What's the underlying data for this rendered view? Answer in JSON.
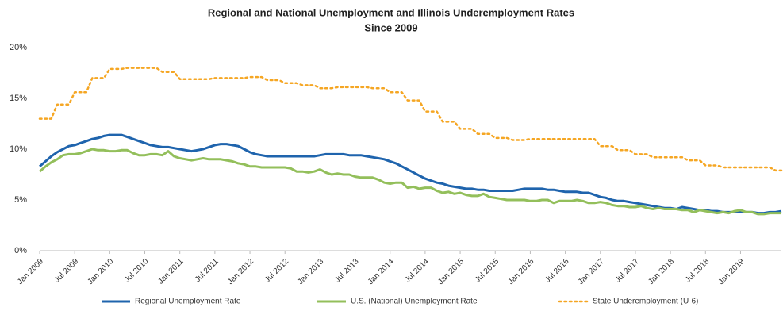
{
  "chart_data": {
    "type": "line",
    "title": "Regional and National Unemployment and Illinois Underemployment Rates",
    "subtitle": "Since 2009",
    "categories": [
      "Jan 2009",
      null,
      null,
      null,
      null,
      null,
      "Jul 2009",
      null,
      null,
      null,
      null,
      null,
      "Jan 2010",
      null,
      null,
      null,
      null,
      null,
      "Jul 2010",
      null,
      null,
      null,
      null,
      null,
      "Jan 2011",
      null,
      null,
      null,
      null,
      null,
      "Jul 2011",
      null,
      null,
      null,
      null,
      null,
      "Jan 2012",
      null,
      null,
      null,
      null,
      null,
      "Jul 2012",
      null,
      null,
      null,
      null,
      null,
      "Jan 2013",
      null,
      null,
      null,
      null,
      null,
      "Jul 2013",
      null,
      null,
      null,
      null,
      null,
      "Jan 2014",
      null,
      null,
      null,
      null,
      null,
      "Jul 2014",
      null,
      null,
      null,
      null,
      null,
      "Jan 2015",
      null,
      null,
      null,
      null,
      null,
      "Jul 2015",
      null,
      null,
      null,
      null,
      null,
      "Jan 2016",
      null,
      null,
      null,
      null,
      null,
      "Jul 2016",
      null,
      null,
      null,
      null,
      null,
      "Jan 2017",
      null,
      null,
      null,
      null,
      null,
      "Jul 2017",
      null,
      null,
      null,
      null,
      null,
      "Jan 2018",
      null,
      null,
      null,
      null,
      null,
      "Jul 2018",
      null,
      null,
      null,
      null,
      null,
      "Jan 2019",
      null,
      null,
      null,
      null,
      null,
      null,
      null
    ],
    "series": [
      {
        "name": "Regional Unemployment Rate",
        "color": "#1f64ad",
        "style": "solid",
        "values": [
          8.3,
          8.8,
          9.3,
          9.7,
          10.0,
          10.3,
          10.4,
          10.6,
          10.8,
          11.0,
          11.1,
          11.3,
          11.4,
          11.4,
          11.4,
          11.2,
          11.0,
          10.8,
          10.6,
          10.4,
          10.3,
          10.2,
          10.2,
          10.1,
          10.0,
          9.9,
          9.8,
          9.9,
          10.0,
          10.2,
          10.4,
          10.5,
          10.5,
          10.4,
          10.3,
          10.0,
          9.7,
          9.5,
          9.4,
          9.3,
          9.3,
          9.3,
          9.3,
          9.3,
          9.3,
          9.3,
          9.3,
          9.3,
          9.4,
          9.5,
          9.5,
          9.5,
          9.5,
          9.4,
          9.4,
          9.4,
          9.3,
          9.2,
          9.1,
          9.0,
          8.8,
          8.6,
          8.3,
          8.0,
          7.7,
          7.4,
          7.1,
          6.9,
          6.7,
          6.6,
          6.4,
          6.3,
          6.2,
          6.1,
          6.1,
          6.0,
          6.0,
          5.9,
          5.9,
          5.9,
          5.9,
          5.9,
          6.0,
          6.1,
          6.1,
          6.1,
          6.1,
          6.0,
          6.0,
          5.9,
          5.8,
          5.8,
          5.8,
          5.7,
          5.7,
          5.5,
          5.3,
          5.2,
          5.0,
          4.9,
          4.9,
          4.8,
          4.7,
          4.6,
          4.5,
          4.4,
          4.3,
          4.2,
          4.2,
          4.1,
          4.3,
          4.2,
          4.1,
          4.0,
          4.0,
          3.9,
          3.9,
          3.8,
          3.8,
          3.8,
          3.8,
          3.8,
          3.8,
          3.7,
          3.7,
          3.8,
          3.8,
          3.9
        ]
      },
      {
        "name": "U.S. (National) Unemployment Rate",
        "color": "#93bf5b",
        "style": "solid",
        "values": [
          7.8,
          8.3,
          8.7,
          9.0,
          9.4,
          9.5,
          9.5,
          9.6,
          9.8,
          10.0,
          9.9,
          9.9,
          9.8,
          9.8,
          9.9,
          9.9,
          9.6,
          9.4,
          9.4,
          9.5,
          9.5,
          9.4,
          9.8,
          9.3,
          9.1,
          9.0,
          8.9,
          9.0,
          9.1,
          9.0,
          9.0,
          9.0,
          8.9,
          8.8,
          8.6,
          8.5,
          8.3,
          8.3,
          8.2,
          8.2,
          8.2,
          8.2,
          8.2,
          8.1,
          7.8,
          7.8,
          7.7,
          7.8,
          8.0,
          7.7,
          7.5,
          7.6,
          7.5,
          7.5,
          7.3,
          7.2,
          7.2,
          7.2,
          7.0,
          6.7,
          6.6,
          6.7,
          6.7,
          6.2,
          6.3,
          6.1,
          6.2,
          6.2,
          5.9,
          5.7,
          5.8,
          5.6,
          5.7,
          5.5,
          5.4,
          5.4,
          5.6,
          5.3,
          5.2,
          5.1,
          5.0,
          5.0,
          5.0,
          5.0,
          4.9,
          4.9,
          5.0,
          5.0,
          4.7,
          4.9,
          4.9,
          4.9,
          5.0,
          4.9,
          4.7,
          4.7,
          4.8,
          4.7,
          4.5,
          4.4,
          4.4,
          4.3,
          4.3,
          4.4,
          4.2,
          4.1,
          4.2,
          4.1,
          4.1,
          4.1,
          4.0,
          4.0,
          3.8,
          4.0,
          3.9,
          3.8,
          3.7,
          3.8,
          3.7,
          3.9,
          4.0,
          3.8,
          3.8,
          3.6,
          3.6,
          3.7,
          3.7,
          3.7
        ]
      },
      {
        "name": "State Underemployment (U-6)",
        "color": "#f5a623",
        "style": "dotted",
        "values": [
          13.0,
          13.0,
          13.0,
          14.4,
          14.4,
          14.4,
          15.6,
          15.6,
          15.6,
          17.0,
          17.0,
          17.0,
          17.9,
          17.9,
          17.9,
          18.0,
          18.0,
          18.0,
          18.0,
          18.0,
          18.0,
          17.6,
          17.6,
          17.6,
          16.9,
          16.9,
          16.9,
          16.9,
          16.9,
          16.9,
          17.0,
          17.0,
          17.0,
          17.0,
          17.0,
          17.0,
          17.1,
          17.1,
          17.1,
          16.8,
          16.8,
          16.8,
          16.5,
          16.5,
          16.5,
          16.3,
          16.3,
          16.3,
          16.0,
          16.0,
          16.0,
          16.1,
          16.1,
          16.1,
          16.1,
          16.1,
          16.1,
          16.0,
          16.0,
          16.0,
          15.6,
          15.6,
          15.6,
          14.8,
          14.8,
          14.8,
          13.7,
          13.7,
          13.7,
          12.7,
          12.7,
          12.7,
          12.0,
          12.0,
          12.0,
          11.5,
          11.5,
          11.5,
          11.1,
          11.1,
          11.1,
          10.9,
          10.9,
          10.9,
          11.0,
          11.0,
          11.0,
          11.0,
          11.0,
          11.0,
          11.0,
          11.0,
          11.0,
          11.0,
          11.0,
          11.0,
          10.3,
          10.3,
          10.3,
          9.9,
          9.9,
          9.9,
          9.5,
          9.5,
          9.5,
          9.2,
          9.2,
          9.2,
          9.2,
          9.2,
          9.2,
          8.9,
          8.9,
          8.9,
          8.4,
          8.4,
          8.4,
          8.2,
          8.2,
          8.2,
          8.2,
          8.2,
          8.2,
          8.2,
          8.2,
          8.2,
          7.9,
          7.9
        ]
      }
    ],
    "ylim": [
      0,
      20
    ],
    "yticks": [
      {
        "value": 0,
        "label": "0%"
      },
      {
        "value": 5,
        "label": "5%"
      },
      {
        "value": 10,
        "label": "10%"
      },
      {
        "value": 15,
        "label": "15%"
      },
      {
        "value": 20,
        "label": "20%"
      }
    ],
    "grid": false,
    "legend": "bottom"
  }
}
